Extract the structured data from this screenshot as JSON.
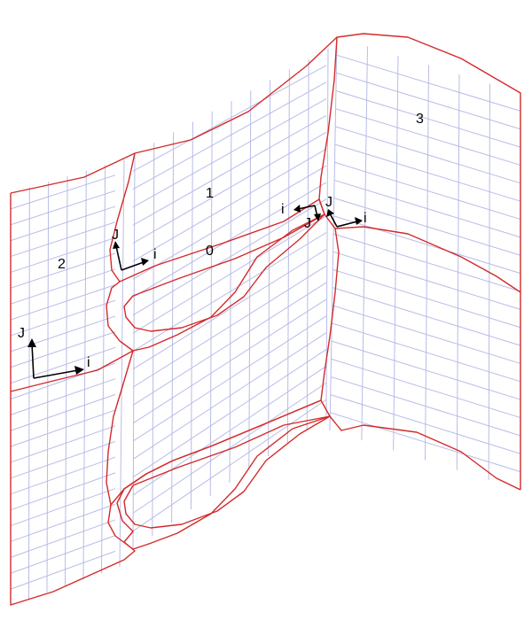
{
  "blocks": [
    {
      "id": "block-0",
      "label": "0"
    },
    {
      "id": "block-1",
      "label": "1"
    },
    {
      "id": "block-2",
      "label": "2"
    },
    {
      "id": "block-3",
      "label": "3"
    }
  ],
  "axes": {
    "i_label": "i",
    "j_label": "J"
  },
  "colors": {
    "block_boundary": "#d42a2a",
    "mesh_lines": "#b8bce6",
    "axes": "#000000"
  }
}
